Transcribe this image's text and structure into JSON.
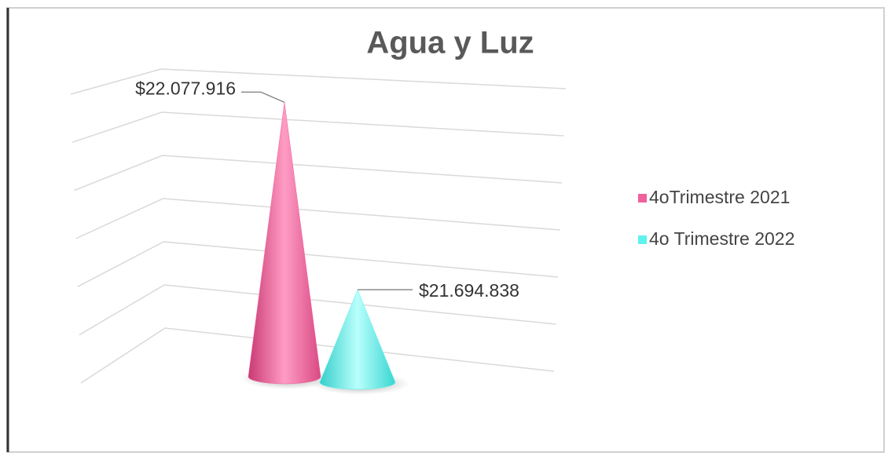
{
  "chart_data": {
    "type": "cone3d",
    "title": "Agua y Luz",
    "series": [
      {
        "name": "4oTrimestre 2021",
        "color": "#f0609a",
        "values": [
          22077916
        ],
        "value_labels": [
          "$22.077.916"
        ]
      },
      {
        "name": "4o Trimestre 2022",
        "color": "#5ff2ee",
        "values": [
          21694838
        ],
        "value_labels": [
          "$21.694.838"
        ]
      }
    ],
    "ylim": [
      21500000,
      22100000
    ],
    "yticks": [
      21500000,
      21600000,
      21700000,
      21800000,
      21900000,
      22000000,
      22100000
    ],
    "grid": true,
    "legend": "right"
  }
}
